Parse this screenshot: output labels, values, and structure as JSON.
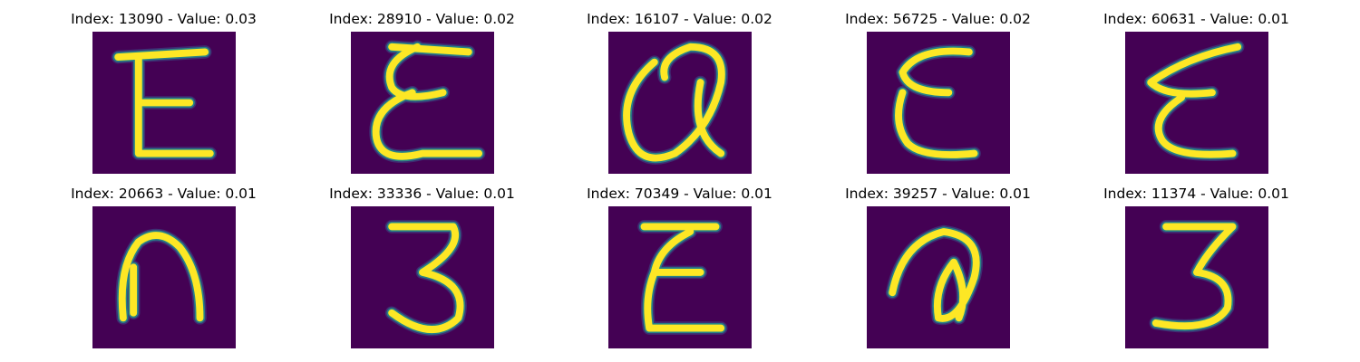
{
  "panels": [
    {
      "index": "13090",
      "value": "0.03",
      "title": "Index: 13090 - Value: 0.03",
      "glyph": "E"
    },
    {
      "index": "28910",
      "value": "0.02",
      "title": "Index: 28910 - Value: 0.02",
      "glyph": "E"
    },
    {
      "index": "16107",
      "value": "0.02",
      "title": "Index: 16107 - Value: 0.02",
      "glyph": "a"
    },
    {
      "index": "56725",
      "value": "0.02",
      "title": "Index: 56725 - Value: 0.02",
      "glyph": "E"
    },
    {
      "index": "60631",
      "value": "0.01",
      "title": "Index: 60631 - Value: 0.01",
      "glyph": "E"
    },
    {
      "index": "20663",
      "value": "0.01",
      "title": "Index: 20663 - Value: 0.01",
      "glyph": "n"
    },
    {
      "index": "33336",
      "value": "0.01",
      "title": "Index: 33336 - Value: 0.01",
      "glyph": "3"
    },
    {
      "index": "70349",
      "value": "0.01",
      "title": "Index: 70349 - Value: 0.01",
      "glyph": "E"
    },
    {
      "index": "39257",
      "value": "0.01",
      "title": "Index: 39257 - Value: 0.01",
      "glyph": "a"
    },
    {
      "index": "11374",
      "value": "0.01",
      "title": "Index: 11374 - Value: 0.01",
      "glyph": "3"
    }
  ],
  "colors": {
    "background": "#440154",
    "stroke": "#fde725",
    "edge": "#21918c"
  }
}
